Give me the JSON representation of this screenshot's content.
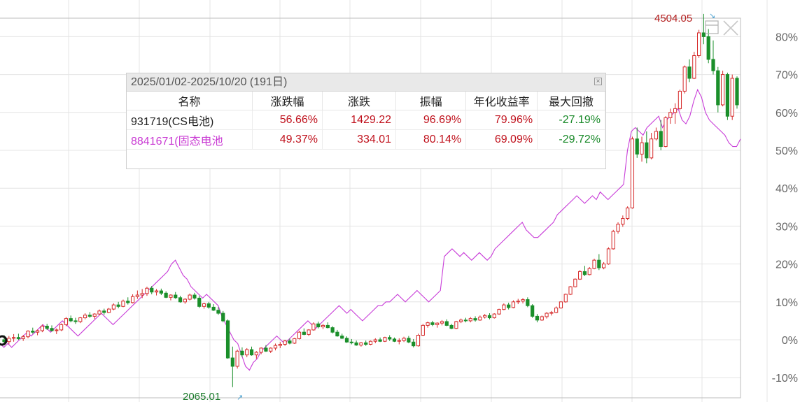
{
  "chart_data": {
    "type": "candlestick+line",
    "y_axis": {
      "ticks": [
        "80%",
        "70%",
        "60%",
        "50%",
        "40%",
        "30%",
        "20%",
        "10%",
        "0%",
        "-10%"
      ],
      "range_pct": [
        -13,
        86
      ]
    },
    "annotations": {
      "high": "4504.05",
      "low": "2065.01"
    },
    "grid": true,
    "colors": {
      "up": "#d62a2a",
      "down": "#1a8f2a",
      "line": "#c83cd8"
    },
    "series_line_pct": [
      -1,
      -2,
      -1,
      -2,
      -1,
      0,
      1,
      2,
      1,
      2,
      3,
      4,
      3,
      2,
      3,
      4,
      5,
      4,
      3,
      2,
      1,
      2,
      3,
      4,
      5,
      6,
      7,
      6,
      5,
      4,
      5,
      6,
      7,
      8,
      9,
      10,
      11,
      12,
      13,
      14,
      15,
      16,
      17,
      18,
      20,
      21,
      19,
      17,
      16,
      14,
      13,
      12,
      11,
      12,
      11,
      10,
      9,
      6,
      4,
      2,
      0,
      -1,
      -4,
      -7,
      -8,
      -6,
      -5,
      -3,
      -2,
      -1,
      0,
      1,
      0,
      -1,
      0,
      1,
      2,
      3,
      4,
      5,
      4,
      3,
      4,
      5,
      6,
      7,
      8,
      9,
      8,
      7,
      8,
      7,
      6,
      5,
      6,
      7,
      8,
      9,
      9,
      10,
      10,
      11,
      12,
      11,
      10,
      11,
      12,
      13,
      12,
      11,
      10,
      11,
      12,
      13,
      22,
      23,
      24,
      23,
      22,
      23,
      22,
      21,
      22,
      23,
      22,
      21,
      22,
      24,
      25,
      26,
      27,
      28,
      29,
      30,
      31,
      29,
      28,
      27,
      27,
      28,
      29,
      30,
      31,
      33,
      34,
      35,
      36,
      37,
      38,
      37,
      36,
      37,
      38,
      37,
      39,
      38,
      37,
      38,
      39,
      40,
      41,
      50,
      55,
      56,
      55,
      54,
      56,
      57,
      58,
      59,
      56,
      58,
      59,
      60,
      61,
      58,
      57,
      59,
      63,
      66,
      64,
      60,
      58,
      57,
      56,
      55,
      54,
      52,
      51,
      51,
      53
    ],
    "candles_pct": [
      [
        0,
        1.2,
        -1.5,
        -0.5
      ],
      [
        -0.5,
        1,
        -1.2,
        0.4
      ],
      [
        0.4,
        1.5,
        -0.5,
        0.6
      ],
      [
        0.6,
        1.6,
        0,
        0.3
      ],
      [
        0.3,
        1.3,
        -0.3,
        0.8
      ],
      [
        0.8,
        2.5,
        0.4,
        2.3
      ],
      [
        2.3,
        3.2,
        1.6,
        2
      ],
      [
        2,
        2.7,
        1.2,
        2.4
      ],
      [
        2.4,
        4,
        2,
        3.6
      ],
      [
        3.6,
        4.2,
        2.6,
        3
      ],
      [
        3,
        3.8,
        2.2,
        2.4
      ],
      [
        2.4,
        3,
        1.5,
        2.6
      ],
      [
        2.6,
        4.3,
        2.3,
        4
      ],
      [
        4,
        6,
        3.6,
        5.6
      ],
      [
        5.6,
        6.4,
        4.6,
        5
      ],
      [
        5,
        5.8,
        4.2,
        4.8
      ],
      [
        4.8,
        6,
        4.4,
        5.8
      ],
      [
        5.8,
        7,
        5.4,
        6.5
      ],
      [
        6.5,
        7.3,
        5.8,
        6.2
      ],
      [
        6.2,
        7,
        5.5,
        6.8
      ],
      [
        6.8,
        8,
        6.5,
        7.6
      ],
      [
        7.6,
        8.2,
        6.6,
        7.2
      ],
      [
        7.2,
        8.4,
        7,
        8.1
      ],
      [
        8.1,
        9.6,
        7.8,
        9.2
      ],
      [
        9.2,
        10,
        8.3,
        8.8
      ],
      [
        8.8,
        10.6,
        8.6,
        10.2
      ],
      [
        10.2,
        11.2,
        9.3,
        9.8
      ],
      [
        9.8,
        12,
        9.6,
        11.4
      ],
      [
        11.4,
        13,
        10.8,
        11.8
      ],
      [
        11.8,
        13.4,
        11,
        12.2
      ],
      [
        12.2,
        14,
        11.6,
        13.6
      ],
      [
        13.6,
        14.2,
        12,
        12.6
      ],
      [
        12.6,
        13.4,
        11.7,
        12.9
      ],
      [
        12.9,
        13.5,
        11.8,
        12.3
      ],
      [
        12.3,
        12.8,
        11,
        11.2
      ],
      [
        11.2,
        12,
        10.4,
        11.8
      ],
      [
        11.8,
        12.6,
        10.8,
        11.1
      ],
      [
        11.1,
        11.6,
        9.8,
        10
      ],
      [
        10,
        11,
        9.5,
        10.7
      ],
      [
        10.7,
        12.2,
        10.4,
        11.8
      ],
      [
        11.8,
        12.4,
        10.6,
        11
      ],
      [
        11,
        11.6,
        8.4,
        8.8
      ],
      [
        8.8,
        9.8,
        8.2,
        9.5
      ],
      [
        9.5,
        10,
        8.2,
        8.6
      ],
      [
        8.6,
        9.4,
        7.6,
        7.8
      ],
      [
        7.8,
        8.6,
        6.6,
        7
      ],
      [
        7,
        7.6,
        4.6,
        5
      ],
      [
        5,
        5.4,
        -5,
        -4.8
      ],
      [
        -4.8,
        -1.8,
        -12.5,
        -7
      ],
      [
        -7,
        -2.6,
        -7.6,
        -3
      ],
      [
        -3,
        -2,
        -4.6,
        -4
      ],
      [
        -4,
        -2.2,
        -4.6,
        -2.6
      ],
      [
        -2.6,
        -1.8,
        -4.2,
        -4
      ],
      [
        -4,
        -3,
        -5,
        -3.3
      ],
      [
        -3.3,
        -2,
        -3.8,
        -2.2
      ],
      [
        -2.2,
        -1.4,
        -3.2,
        -3
      ],
      [
        -3,
        -2,
        -3.5,
        -2.2
      ],
      [
        -2.2,
        -1,
        -2.8,
        -1.5
      ],
      [
        -1.5,
        -0.6,
        -2.2,
        -1.2
      ],
      [
        -1.2,
        0,
        -1.6,
        -0.3
      ],
      [
        -0.3,
        0.3,
        -1.2,
        -0.9
      ],
      [
        -0.9,
        0.5,
        -1.1,
        0.3
      ],
      [
        0.3,
        2.4,
        0.1,
        2
      ],
      [
        2,
        3,
        1.2,
        1.4
      ],
      [
        1.4,
        2.8,
        1,
        2.6
      ],
      [
        2.6,
        4.6,
        2.4,
        4.2
      ],
      [
        4.2,
        4.8,
        3,
        3.4
      ],
      [
        3.4,
        4.2,
        2.8,
        3.8
      ],
      [
        3.8,
        4.6,
        3,
        3.2
      ],
      [
        3.2,
        3.6,
        1.7,
        2
      ],
      [
        2,
        2.6,
        0.8,
        1
      ],
      [
        1,
        1.6,
        0.2,
        0.4
      ],
      [
        0.4,
        0.9,
        -0.8,
        -0.6
      ],
      [
        -0.6,
        0.2,
        -1.2,
        -0.8
      ],
      [
        -0.8,
        -0.2,
        -1.6,
        -1.4
      ],
      [
        -1.4,
        -0.6,
        -1.8,
        -0.8
      ],
      [
        -0.8,
        -0.2,
        -1.6,
        -1.2
      ],
      [
        -1.2,
        -0.2,
        -1.4,
        -0.4
      ],
      [
        -0.4,
        0.4,
        -0.9,
        0
      ],
      [
        0,
        0.6,
        -0.6,
        -0.4
      ],
      [
        -0.4,
        0.8,
        -0.6,
        0.6
      ],
      [
        0.6,
        1.2,
        -0.3,
        0.2
      ],
      [
        0.2,
        0.6,
        -0.6,
        -0.4
      ],
      [
        -0.4,
        0.4,
        -1.2,
        -0.2
      ],
      [
        -0.2,
        0.8,
        -0.6,
        0.4
      ],
      [
        0.4,
        1,
        -0.9,
        -0.6
      ],
      [
        -0.6,
        0.2,
        -2,
        -1.6
      ],
      [
        -1.6,
        1.6,
        -1.8,
        1.2
      ],
      [
        1.2,
        4.2,
        1,
        3.8
      ],
      [
        3.8,
        4.8,
        3.2,
        4.5
      ],
      [
        4.5,
        5,
        3.6,
        4
      ],
      [
        4,
        4.6,
        3.2,
        4.4
      ],
      [
        4.4,
        5.2,
        3.8,
        4.8
      ],
      [
        4.8,
        5.4,
        3.6,
        3.8
      ],
      [
        3.8,
        4.2,
        2.8,
        3
      ],
      [
        3,
        5,
        2.8,
        4.8
      ],
      [
        4.8,
        5.6,
        4.4,
        5.2
      ],
      [
        5.2,
        5.8,
        4.6,
        5
      ],
      [
        5,
        6,
        4.6,
        5.6
      ],
      [
        5.6,
        6.2,
        4.8,
        5.2
      ],
      [
        5.2,
        6.4,
        5,
        6
      ],
      [
        6,
        6.8,
        5.6,
        6.4
      ],
      [
        6.4,
        7,
        5.4,
        5.8
      ],
      [
        5.8,
        7,
        5.6,
        6.8
      ],
      [
        6.8,
        8.2,
        6.6,
        8
      ],
      [
        8,
        9.6,
        7.8,
        9.2
      ],
      [
        9.2,
        9.8,
        8,
        8.5
      ],
      [
        8.5,
        10.4,
        8.3,
        10
      ],
      [
        10,
        10.8,
        9.4,
        10.2
      ],
      [
        10.2,
        11,
        9.6,
        10.6
      ],
      [
        10.6,
        11.2,
        8.6,
        9
      ],
      [
        9,
        9.4,
        5.8,
        6.2
      ],
      [
        6.2,
        6.8,
        4.6,
        5.2
      ],
      [
        5.2,
        6.4,
        5,
        6.1
      ],
      [
        6.1,
        7.3,
        5.6,
        7
      ],
      [
        7,
        7.6,
        6.4,
        7.2
      ],
      [
        7.2,
        8.8,
        7,
        8.4
      ],
      [
        8.4,
        10.2,
        8.2,
        10
      ],
      [
        10,
        12.2,
        9.8,
        12
      ],
      [
        12,
        14.2,
        11.8,
        14
      ],
      [
        14,
        16.2,
        13.8,
        16
      ],
      [
        16,
        18.4,
        15.8,
        18
      ],
      [
        18,
        19.5,
        16.8,
        17.2
      ],
      [
        17.2,
        19.2,
        17,
        18.8
      ],
      [
        18.8,
        21.4,
        18.6,
        21
      ],
      [
        21,
        22.6,
        18.4,
        19
      ],
      [
        19,
        20.5,
        18.6,
        20
      ],
      [
        20,
        24.4,
        19.8,
        24
      ],
      [
        24,
        29,
        23.8,
        28.6
      ],
      [
        28.6,
        31,
        28,
        30.5
      ],
      [
        30.5,
        32.8,
        29.8,
        32
      ],
      [
        32,
        35.2,
        31.6,
        34.8
      ],
      [
        34.8,
        53.6,
        34.6,
        53
      ],
      [
        53,
        56,
        48,
        49
      ],
      [
        49,
        53.6,
        47,
        52
      ],
      [
        52,
        55,
        46.6,
        48
      ],
      [
        48,
        54.6,
        47.6,
        53
      ],
      [
        53,
        56,
        52.6,
        55
      ],
      [
        55,
        58,
        50,
        51
      ],
      [
        51,
        59,
        50.8,
        58.6
      ],
      [
        58.6,
        61,
        57,
        60
      ],
      [
        60,
        62.4,
        57,
        61
      ],
      [
        61,
        66,
        60.6,
        65.6
      ],
      [
        65.6,
        72.4,
        65,
        72
      ],
      [
        72,
        74,
        68,
        69
      ],
      [
        69,
        76,
        68.8,
        75
      ],
      [
        75,
        81.8,
        74.4,
        81
      ],
      [
        81,
        86,
        78,
        80
      ],
      [
        80,
        82,
        73,
        74
      ],
      [
        74,
        79,
        70,
        71
      ],
      [
        71,
        72,
        60,
        62
      ],
      [
        62,
        71,
        61.6,
        70
      ],
      [
        70,
        70.5,
        58,
        59
      ],
      [
        59,
        70,
        58,
        69
      ],
      [
        69,
        69.5,
        61,
        62
      ]
    ]
  },
  "panel": {
    "title": "2025/01/02-2025/10/20 (191日)",
    "close_glyph": "⊠",
    "columns": [
      "名称",
      "涨跌幅",
      "涨跌",
      "振幅",
      "年化收益率",
      "最大回撤"
    ],
    "rows": [
      {
        "name": "931719(CS电池)",
        "change_pct": "56.66%",
        "change": "1429.22",
        "amplitude": "96.69%",
        "annualized": "79.96%",
        "max_drawdown": "-27.19%"
      },
      {
        "name": "8841671(固态电池",
        "change_pct": "49.37%",
        "change": "334.01",
        "amplitude": "80.14%",
        "annualized": "69.09%",
        "max_drawdown": "-29.72%"
      }
    ]
  },
  "colors": {
    "grid": "#e2e2e2",
    "name_row1": "#222222",
    "name_row2": "#c93ad3",
    "up": "#c0121d",
    "down": "#1a8a2a",
    "high_label": "#b41e1e",
    "low_label": "#1a7a2a"
  }
}
